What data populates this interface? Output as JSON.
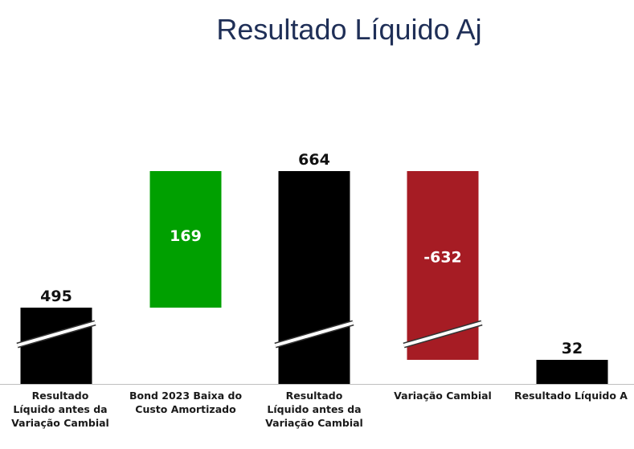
{
  "chart_data": {
    "type": "bar",
    "subtype": "waterfall",
    "title": "Resultado Líquido Aj",
    "categories": [
      "Resultado\nLíquido antes da\nVariação Cambial",
      "Bond 2023 Baixa do\nCusto Amortizado",
      "Resultado\nLíquido antes da\nVariação Cambial",
      "Variação Cambial",
      "Resultado Líquido A"
    ],
    "values": [
      495,
      169,
      664,
      -632,
      32
    ],
    "value_labels": [
      "495",
      "169",
      "664",
      "-632",
      "32"
    ],
    "kinds": [
      "total",
      "delta",
      "total",
      "delta",
      "total"
    ],
    "axis_break_on": [
      0,
      2,
      3
    ],
    "colors": {
      "total": "#000000",
      "increase": "#00a000",
      "decrease": "#a61c24",
      "label_dark": "#111111",
      "label_light": "#ffffff"
    },
    "grid": false,
    "legend": "none"
  }
}
